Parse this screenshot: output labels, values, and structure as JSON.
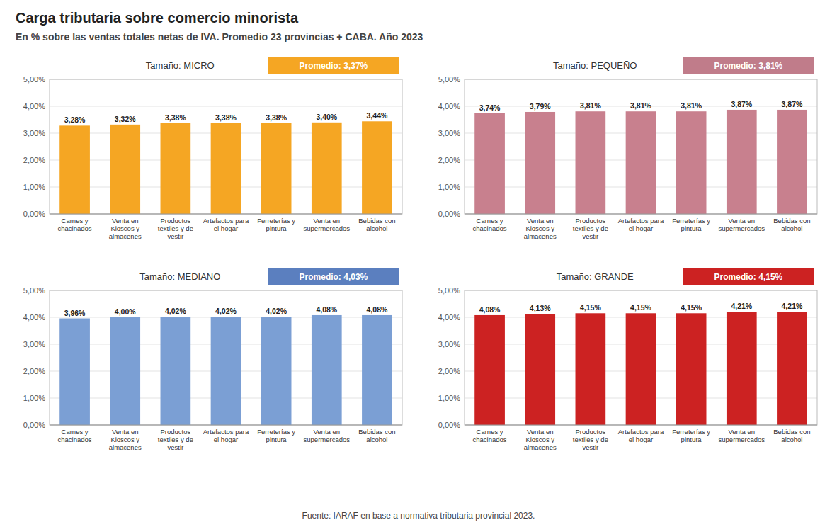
{
  "title": "Carga tributaria sobre comercio minorista",
  "subtitle": "En % sobre las ventas totales netas de IVA. Promedio 23 provincias + CABA. Año 2023",
  "annotations": [
    "Fuente: IARAF en base a normativa tributaria provincial 2023."
  ],
  "chart_data": [
    {
      "type": "bar",
      "title": "Tamaño: MICRO",
      "annotations": [
        {
          "text": "Promedio: 3,37%",
          "color": "#F5A623"
        }
      ],
      "categories": [
        "Carnes y\nchacinados",
        "Venta en\nKioscos y\nalmacenes",
        "Productos\ntextiles y de\nvestir",
        "Artefactos para\nel hogar",
        "Ferreterías y\npintura",
        "Venta en\nsupermercados",
        "Bebidas con\nalcohol"
      ],
      "values": [
        3.28,
        3.32,
        3.38,
        3.38,
        3.38,
        3.4,
        3.44
      ],
      "value_labels": [
        "3,28%",
        "3,32%",
        "3,38%",
        "3,38%",
        "3,38%",
        "3,40%",
        "3,44%"
      ],
      "data_labels": true,
      "color": "#F5A623",
      "ylim": [
        0,
        5.0
      ],
      "yticks": [
        {
          "value": 0.0,
          "label": "0,00%"
        },
        {
          "value": 1.0,
          "label": "1,00%"
        },
        {
          "value": 2.0,
          "label": "2,00%"
        },
        {
          "value": 3.0,
          "label": "3,00%"
        },
        {
          "value": 4.0,
          "label": "4,00%"
        },
        {
          "value": 5.0,
          "label": "5,00%"
        }
      ],
      "grid": true
    },
    {
      "type": "bar",
      "title": "Tamaño: PEQUEÑO",
      "annotations": [
        {
          "text": "Promedio: 3,81%",
          "color": "#C07C8A"
        }
      ],
      "categories": [
        "Carnes y\nchacinados",
        "Venta en\nKioscos y\nalmacenes",
        "Productos\ntextiles y de\nvestir",
        "Artefactos para\nel hogar",
        "Ferreterías y\npintura",
        "Venta en\nsupermercados",
        "Bebidas con\nalcohol"
      ],
      "values": [
        3.74,
        3.79,
        3.81,
        3.81,
        3.81,
        3.87,
        3.87
      ],
      "value_labels": [
        "3,74%",
        "3,79%",
        "3,81%",
        "3,81%",
        "3,81%",
        "3,87%",
        "3,87%"
      ],
      "data_labels": true,
      "color": "#C8808E",
      "ylim": [
        0,
        5.0
      ],
      "yticks": [
        {
          "value": 0.0,
          "label": "0,00%"
        },
        {
          "value": 1.0,
          "label": "1,00%"
        },
        {
          "value": 2.0,
          "label": "2,00%"
        },
        {
          "value": 3.0,
          "label": "3,00%"
        },
        {
          "value": 4.0,
          "label": "4,00%"
        },
        {
          "value": 5.0,
          "label": "5,00%"
        }
      ],
      "grid": true
    },
    {
      "type": "bar",
      "title": "Tamaño: MEDIANO",
      "annotations": [
        {
          "text": "Promedio: 4,03%",
          "color": "#5B7FBF"
        }
      ],
      "categories": [
        "Carnes y\nchacinados",
        "Venta en\nKioscos y\nalmacenes",
        "Productos\ntextiles y de\nvestir",
        "Artefactos para\nel hogar",
        "Ferreterías y\npintura",
        "Venta en\nsupermercados",
        "Bebidas con\nalcohol"
      ],
      "values": [
        3.96,
        4.0,
        4.02,
        4.02,
        4.02,
        4.08,
        4.08
      ],
      "value_labels": [
        "3,96%",
        "4,00%",
        "4,02%",
        "4,02%",
        "4,02%",
        "4,08%",
        "4,08%"
      ],
      "data_labels": true,
      "color": "#7B9FD4",
      "ylim": [
        0,
        5.0
      ],
      "yticks": [
        {
          "value": 0.0,
          "label": "0,00%"
        },
        {
          "value": 1.0,
          "label": "1,00%"
        },
        {
          "value": 2.0,
          "label": "2,00%"
        },
        {
          "value": 3.0,
          "label": "3,00%"
        },
        {
          "value": 4.0,
          "label": "4,00%"
        },
        {
          "value": 5.0,
          "label": "5,00%"
        }
      ],
      "grid": true
    },
    {
      "type": "bar",
      "title": "Tamaño: GRANDE",
      "annotations": [
        {
          "text": "Promedio: 4,15%",
          "color": "#CC2222"
        }
      ],
      "categories": [
        "Carnes y\nchacinados",
        "Venta en\nKioscos y\nalmacenes",
        "Productos\ntextiles y de\nvestir",
        "Artefactos para\nel hogar",
        "Ferreterías y\npintura",
        "Venta en\nsupermercados",
        "Bebidas con\nalcohol"
      ],
      "values": [
        4.08,
        4.13,
        4.15,
        4.15,
        4.15,
        4.21,
        4.21
      ],
      "value_labels": [
        "4,08%",
        "4,13%",
        "4,15%",
        "4,15%",
        "4,15%",
        "4,21%",
        "4,21%"
      ],
      "data_labels": true,
      "color": "#CC2222",
      "ylim": [
        0,
        5.0
      ],
      "yticks": [
        {
          "value": 0.0,
          "label": "0,00%"
        },
        {
          "value": 1.0,
          "label": "1,00%"
        },
        {
          "value": 2.0,
          "label": "2,00%"
        },
        {
          "value": 3.0,
          "label": "3,00%"
        },
        {
          "value": 4.0,
          "label": "4,00%"
        },
        {
          "value": 5.0,
          "label": "5,00%"
        }
      ],
      "grid": true
    }
  ]
}
